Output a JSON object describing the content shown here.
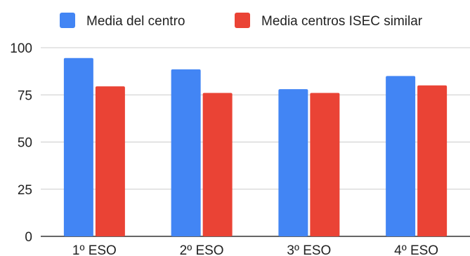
{
  "chart_data": {
    "type": "bar",
    "title": "",
    "xlabel": "",
    "ylabel": "",
    "categories": [
      "1º ESO",
      "2º ESO",
      "3º ESO",
      "4º ESO"
    ],
    "series": [
      {
        "name": "Media del centro",
        "values": [
          94.5,
          88.5,
          78,
          85
        ],
        "color": "#4285F4"
      },
      {
        "name": "Media centros ISEC similar",
        "values": [
          79.5,
          76,
          76,
          80
        ],
        "color": "#EA4335"
      }
    ],
    "ylim": [
      0,
      100
    ],
    "yticks": [
      0,
      25,
      50,
      75,
      100
    ],
    "grid": true,
    "legend_position": "top"
  }
}
